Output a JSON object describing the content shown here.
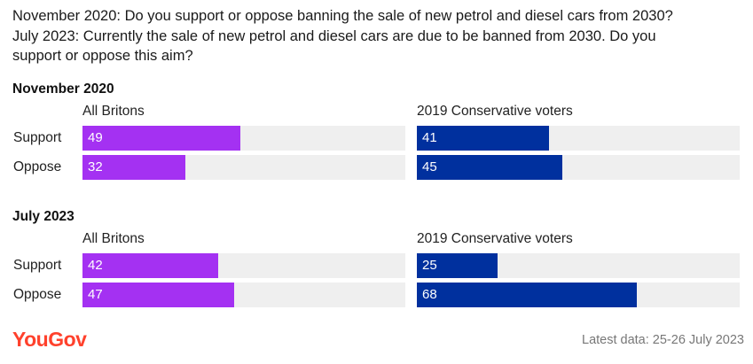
{
  "title_lines": [
    "November 2020: Do you support or oppose banning the sale of new petrol and diesel cars from 2030?",
    "July 2023: Currently the sale of new petrol and diesel cars are due to be banned from 2030. Do you",
    "support or oppose this aim?"
  ],
  "colors": {
    "all_britons": "#a431f2",
    "conservative": "#00309e",
    "track": "#efefef",
    "logo": "#ff412c"
  },
  "chart_data": {
    "type": "bar",
    "orientation": "horizontal",
    "xlim": [
      0,
      100
    ],
    "unit": "%",
    "sections": [
      {
        "title": "November 2020",
        "panels": [
          {
            "name": "All Britons",
            "categories": [
              "Support",
              "Oppose"
            ],
            "values": [
              49,
              32
            ]
          },
          {
            "name": "2019 Conservative voters",
            "categories": [
              "Support",
              "Oppose"
            ],
            "values": [
              41,
              45
            ]
          }
        ]
      },
      {
        "title": "July 2023",
        "panels": [
          {
            "name": "All Britons",
            "categories": [
              "Support",
              "Oppose"
            ],
            "values": [
              42,
              47
            ]
          },
          {
            "name": "2019 Conservative voters",
            "categories": [
              "Support",
              "Oppose"
            ],
            "values": [
              25,
              68
            ]
          }
        ]
      }
    ]
  },
  "logo_text": "YouGov",
  "footnote": "Latest data: 25-26 July 2023"
}
